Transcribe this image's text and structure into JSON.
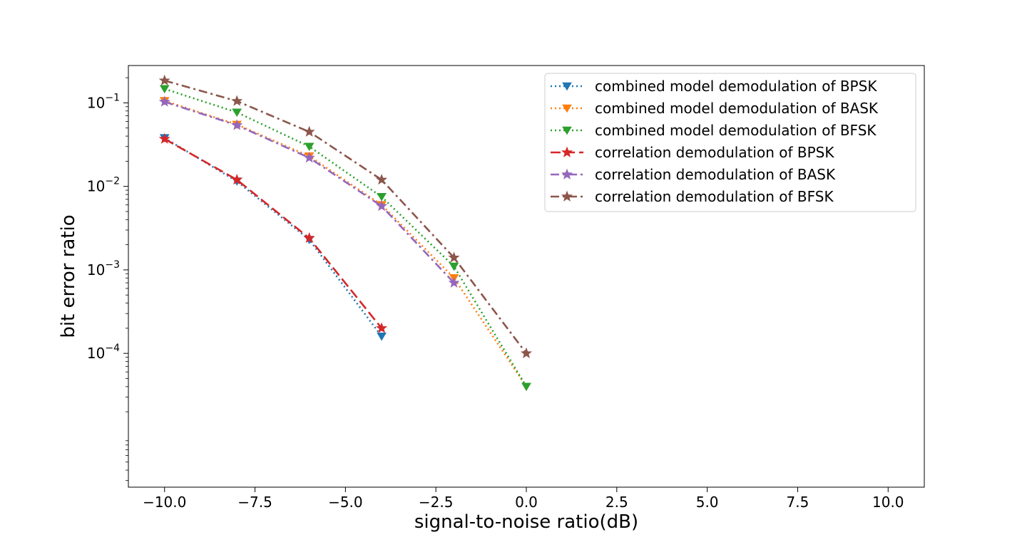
{
  "chart_data": {
    "type": "line",
    "title": "",
    "xlabel": "signal-to-noise ratio(dB)",
    "ylabel": "bit error ratio",
    "xlim": [
      -11,
      11
    ],
    "ylim": [
      2.5e-06,
      0.28
    ],
    "yscale": "log",
    "grid": false,
    "legend_position": "top-right",
    "x_ticks": [
      {
        "value": -10,
        "label": "−10.0"
      },
      {
        "value": -7.5,
        "label": "−7.5"
      },
      {
        "value": -5,
        "label": "−5.0"
      },
      {
        "value": -2.5,
        "label": "−2.5"
      },
      {
        "value": 0,
        "label": "0.0"
      },
      {
        "value": 2.5,
        "label": "2.5"
      },
      {
        "value": 5,
        "label": "5.0"
      },
      {
        "value": 7.5,
        "label": "7.5"
      },
      {
        "value": 10,
        "label": "10.0"
      }
    ],
    "y_ticks": [
      {
        "value": 0.1,
        "base": "10",
        "exp": "−1"
      },
      {
        "value": 0.01,
        "base": "10",
        "exp": "−2"
      },
      {
        "value": 0.001,
        "base": "10",
        "exp": "−3"
      },
      {
        "value": 0.0001,
        "base": "10",
        "exp": "−4"
      }
    ],
    "series": [
      {
        "name": "combined model demodulation of BPSK",
        "color": "#1f77b4",
        "style": "dotted",
        "marker": "triangle-down",
        "x": [
          -10,
          -8,
          -6,
          -4
        ],
        "y": [
          0.038,
          0.0115,
          0.0023,
          0.00016
        ]
      },
      {
        "name": "combined model demodulation of BASK",
        "color": "#ff7f0e",
        "style": "dotted",
        "marker": "triangle-down",
        "x": [
          -10,
          -8,
          -6,
          -4,
          -2,
          0
        ],
        "y": [
          0.106,
          0.055,
          0.023,
          0.006,
          0.0008,
          4e-05
        ]
      },
      {
        "name": "combined model demodulation of BFSK",
        "color": "#2ca02c",
        "style": "dotted",
        "marker": "triangle-down",
        "x": [
          -10,
          -8,
          -6,
          -4,
          -2,
          0
        ],
        "y": [
          0.147,
          0.077,
          0.03,
          0.0075,
          0.0011,
          4e-05
        ]
      },
      {
        "name": "correlation demodulation of BPSK",
        "color": "#d62728",
        "style": "dashed",
        "marker": "star",
        "x": [
          -10,
          -8,
          -6,
          -4
        ],
        "y": [
          0.037,
          0.012,
          0.0024,
          0.0002
        ]
      },
      {
        "name": "correlation demodulation of BASK",
        "color": "#9467bd",
        "style": "dashdot",
        "marker": "star",
        "x": [
          -10,
          -8,
          -6,
          -4,
          -2
        ],
        "y": [
          0.103,
          0.054,
          0.022,
          0.0058,
          0.0007
        ]
      },
      {
        "name": "correlation demodulation of BFSK",
        "color": "#8c564b",
        "style": "dashdot",
        "marker": "star",
        "x": [
          -10,
          -8,
          -6,
          -4,
          -2,
          0
        ],
        "y": [
          0.185,
          0.105,
          0.045,
          0.012,
          0.0014,
          0.0001
        ]
      }
    ]
  }
}
